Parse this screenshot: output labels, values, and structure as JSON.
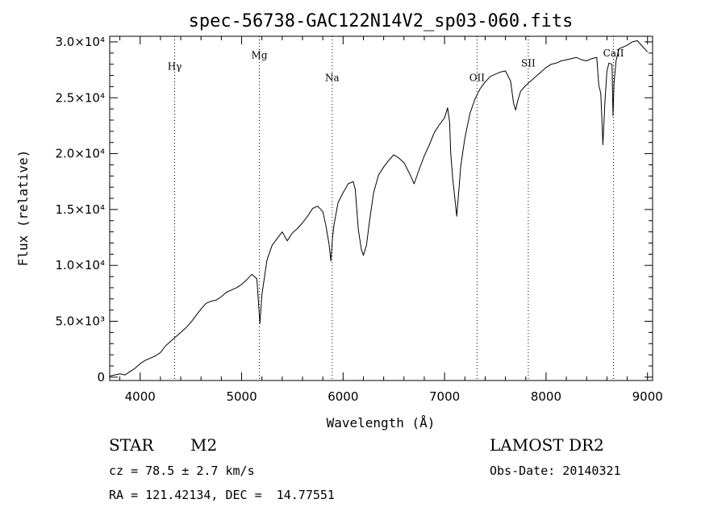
{
  "chart_data": {
    "type": "line",
    "title": "spec-56738-GAC122N14V2_sp03-060.fits",
    "xlabel": "Wavelength (Å)",
    "ylabel": "Flux (relative)",
    "xlim": [
      3700,
      9050
    ],
    "ylim": [
      -300,
      30500
    ],
    "x_ticks": [
      4000,
      5000,
      6000,
      7000,
      8000,
      9000
    ],
    "y_ticks": [
      {
        "value": 0,
        "label": "0"
      },
      {
        "value": 5000,
        "label": "5.0×10³"
      },
      {
        "value": 10000,
        "label": "1.0×10⁴"
      },
      {
        "value": 15000,
        "label": "1.5×10⁴"
      },
      {
        "value": 20000,
        "label": "2.0×10⁴"
      },
      {
        "value": 25000,
        "label": "2.5×10⁴"
      },
      {
        "value": 30000,
        "label": "3.0×10⁴"
      }
    ],
    "grid": false,
    "spectral_lines": [
      {
        "label": "Hγ",
        "x": 4340,
        "label_y": 27500
      },
      {
        "label": "Mg",
        "x": 5175,
        "label_y": 28500
      },
      {
        "label": "Na",
        "x": 5893,
        "label_y": 26500
      },
      {
        "label": "OII",
        "x": 7320,
        "label_y": 26500
      },
      {
        "label": "SII",
        "x": 7825,
        "label_y": 27800
      },
      {
        "label": "CaII",
        "x": 8665,
        "label_y": 28700
      }
    ],
    "series": [
      {
        "x": [
          3700,
          3750,
          3800,
          3850,
          3900,
          3950,
          4000,
          4050,
          4100,
          4150,
          4200,
          4250,
          4300,
          4350,
          4400,
          4450,
          4500,
          4550,
          4600,
          4650,
          4700,
          4750,
          4800,
          4850,
          4900,
          4950,
          5000,
          5050,
          5100,
          5150,
          5170,
          5180,
          5200,
          5250,
          5300,
          5350,
          5400,
          5450,
          5500,
          5550,
          5600,
          5650,
          5700,
          5750,
          5800,
          5830,
          5860,
          5880,
          5895,
          5910,
          5950,
          6000,
          6050,
          6100,
          6120,
          6150,
          6180,
          6200,
          6230,
          6260,
          6300,
          6350,
          6400,
          6450,
          6500,
          6550,
          6600,
          6650,
          6700,
          6750,
          6800,
          6850,
          6900,
          6950,
          7000,
          7030,
          7050,
          7060,
          7080,
          7100,
          7120,
          7140,
          7160,
          7200,
          7250,
          7300,
          7350,
          7400,
          7450,
          7500,
          7550,
          7600,
          7650,
          7680,
          7700,
          7720,
          7750,
          7800,
          7850,
          7900,
          7950,
          8000,
          8050,
          8100,
          8150,
          8200,
          8250,
          8300,
          8350,
          8400,
          8450,
          8500,
          8520,
          8540,
          8560,
          8580,
          8600,
          8620,
          8650,
          8660,
          8670,
          8690,
          8720,
          8750,
          8800,
          8850,
          8900,
          8950,
          9000
        ],
        "values": [
          100,
          200,
          300,
          200,
          500,
          800,
          1200,
          1500,
          1700,
          1900,
          2200,
          2800,
          3200,
          3600,
          4000,
          4400,
          4900,
          5500,
          6100,
          6600,
          6800,
          6900,
          7200,
          7600,
          7800,
          8000,
          8300,
          8700,
          9200,
          8800,
          6200,
          4800,
          7400,
          10500,
          11800,
          12400,
          13000,
          12200,
          12900,
          13300,
          13800,
          14400,
          15100,
          15300,
          14800,
          13600,
          12000,
          10400,
          12400,
          13600,
          15600,
          16500,
          17300,
          17500,
          16800,
          13200,
          11400,
          10900,
          11800,
          13900,
          16500,
          18100,
          18800,
          19400,
          19900,
          19600,
          19200,
          18300,
          17300,
          18600,
          19800,
          20800,
          21900,
          22600,
          23200,
          24100,
          22800,
          20100,
          17800,
          16100,
          14400,
          16600,
          18900,
          21400,
          23600,
          24900,
          25800,
          26400,
          26900,
          27100,
          27300,
          27400,
          26500,
          24500,
          23900,
          24700,
          25600,
          26100,
          26500,
          26900,
          27300,
          27700,
          28000,
          28100,
          28300,
          28400,
          28500,
          28600,
          28400,
          28300,
          28500,
          28600,
          26100,
          25400,
          20800,
          24600,
          27400,
          28100,
          28000,
          23400,
          26300,
          28300,
          29400,
          29500,
          29700,
          30000,
          30100,
          29600,
          29100
        ]
      }
    ]
  },
  "info": {
    "object_type": "STAR",
    "subclass": "M2",
    "survey": "LAMOST DR2",
    "cz": "cz = 78.5 ± 2.7 km/s",
    "obs_date": "Obs-Date: 20140321",
    "coords": "RA = 121.42134, DEC =  14.77551"
  }
}
